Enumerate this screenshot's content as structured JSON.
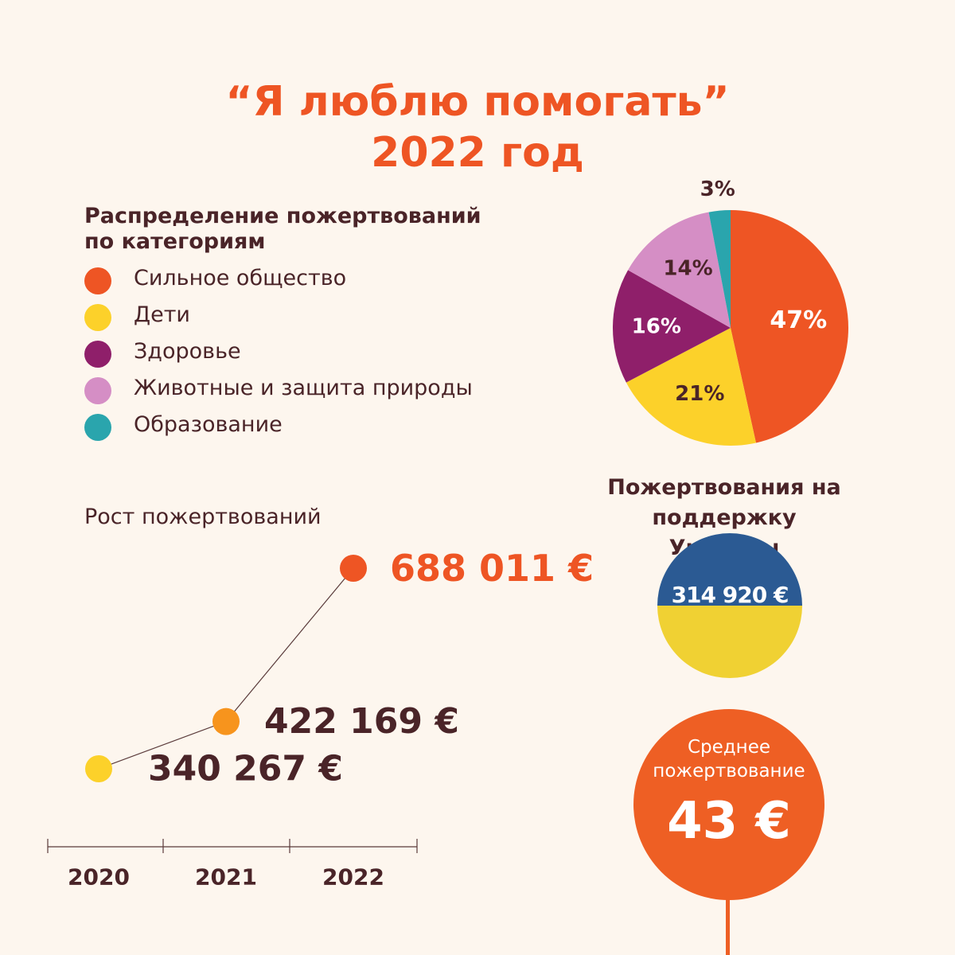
{
  "title": {
    "line1": "“Я люблю помогать”",
    "line2": "2022 год"
  },
  "distribution": {
    "heading_line1": "Распределение пожертвований",
    "heading_line2": "по категориям"
  },
  "growth": {
    "heading": "Рост пожертвований"
  },
  "ukraine": {
    "label_line1": "Пожертвования на",
    "label_line2": "поддержку Украины",
    "value": "314 920 €",
    "colors": {
      "top": "#2b5a93",
      "bottom": "#f0d133"
    }
  },
  "average": {
    "label_line1": "Среднее",
    "label_line2": "пожертвование",
    "value": "43 €"
  },
  "chart_data": [
    {
      "type": "pie",
      "title": "",
      "slices": [
        {
          "name": "Сильное общество",
          "value": 47,
          "label": "47%",
          "color": "#ee5524"
        },
        {
          "name": "Дети",
          "value": 21,
          "label": "21%",
          "color": "#fcd12a"
        },
        {
          "name": "Здоровье",
          "value": 16,
          "label": "16%",
          "color": "#8f1f6a"
        },
        {
          "name": "Животные и защита природы",
          "value": 14,
          "label": "14%",
          "color": "#d58ec5"
        },
        {
          "name": "Образование",
          "value": 3,
          "label": "3%",
          "color": "#2aa5ad"
        }
      ],
      "legend_position": "left"
    },
    {
      "type": "line",
      "title": "",
      "categories": [
        "2020",
        "2021",
        "2022"
      ],
      "series": [
        {
          "values": [
            340267,
            422169,
            688011
          ]
        }
      ],
      "labels": [
        "340 267 €",
        "422 169 €",
        "688 011 €"
      ],
      "point_colors": [
        "#fcd12a",
        "#f7941d",
        "#ee5524"
      ],
      "label_colors": [
        "#4a2428",
        "#4a2428",
        "#ee5524"
      ]
    }
  ]
}
